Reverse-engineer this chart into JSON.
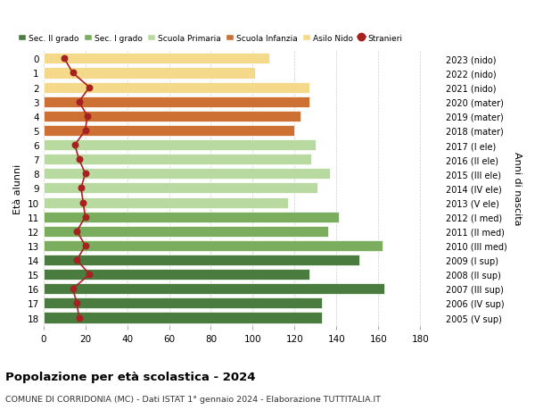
{
  "ages": [
    18,
    17,
    16,
    15,
    14,
    13,
    12,
    11,
    10,
    9,
    8,
    7,
    6,
    5,
    4,
    3,
    2,
    1,
    0
  ],
  "bar_values": [
    133,
    133,
    163,
    127,
    151,
    162,
    136,
    141,
    117,
    131,
    137,
    128,
    130,
    120,
    123,
    127,
    127,
    101,
    108
  ],
  "foreigners": [
    17,
    16,
    14,
    22,
    16,
    20,
    16,
    20,
    19,
    18,
    20,
    17,
    15,
    20,
    21,
    17,
    22,
    14,
    10
  ],
  "right_labels": [
    "2005 (V sup)",
    "2006 (IV sup)",
    "2007 (III sup)",
    "2008 (II sup)",
    "2009 (I sup)",
    "2010 (III med)",
    "2011 (II med)",
    "2012 (I med)",
    "2013 (V ele)",
    "2014 (IV ele)",
    "2015 (III ele)",
    "2016 (II ele)",
    "2017 (I ele)",
    "2018 (mater)",
    "2019 (mater)",
    "2020 (mater)",
    "2021 (nido)",
    "2022 (nido)",
    "2023 (nido)"
  ],
  "bar_colors": [
    "#4a7c3f",
    "#4a7c3f",
    "#4a7c3f",
    "#4a7c3f",
    "#4a7c3f",
    "#7aad5e",
    "#7aad5e",
    "#7aad5e",
    "#b8d9a0",
    "#b8d9a0",
    "#b8d9a0",
    "#b8d9a0",
    "#b8d9a0",
    "#cc7033",
    "#cc7033",
    "#cc7033",
    "#f5d98b",
    "#f5d98b",
    "#f5d98b"
  ],
  "legend_labels": [
    "Sec. II grado",
    "Sec. I grado",
    "Scuola Primaria",
    "Scuola Infanzia",
    "Asilo Nido",
    "Stranieri"
  ],
  "legend_colors": [
    "#4a7c3f",
    "#7aad5e",
    "#b8d9a0",
    "#cc7033",
    "#f5d98b",
    "#a82020"
  ],
  "stranieri_color": "#a82020",
  "ylabel_left": "Età alunni",
  "ylabel_right": "Anni di nascita",
  "title": "Popolazione per età scolastica - 2024",
  "subtitle": "COMUNE DI CORRIDONIA (MC) - Dati ISTAT 1° gennaio 2024 - Elaborazione TUTTITALIA.IT",
  "xlim": [
    0,
    190
  ],
  "xticks": [
    0,
    20,
    40,
    60,
    80,
    100,
    120,
    140,
    160,
    180
  ],
  "background_color": "#ffffff",
  "grid_color": "#cccccc",
  "bar_height": 0.75
}
